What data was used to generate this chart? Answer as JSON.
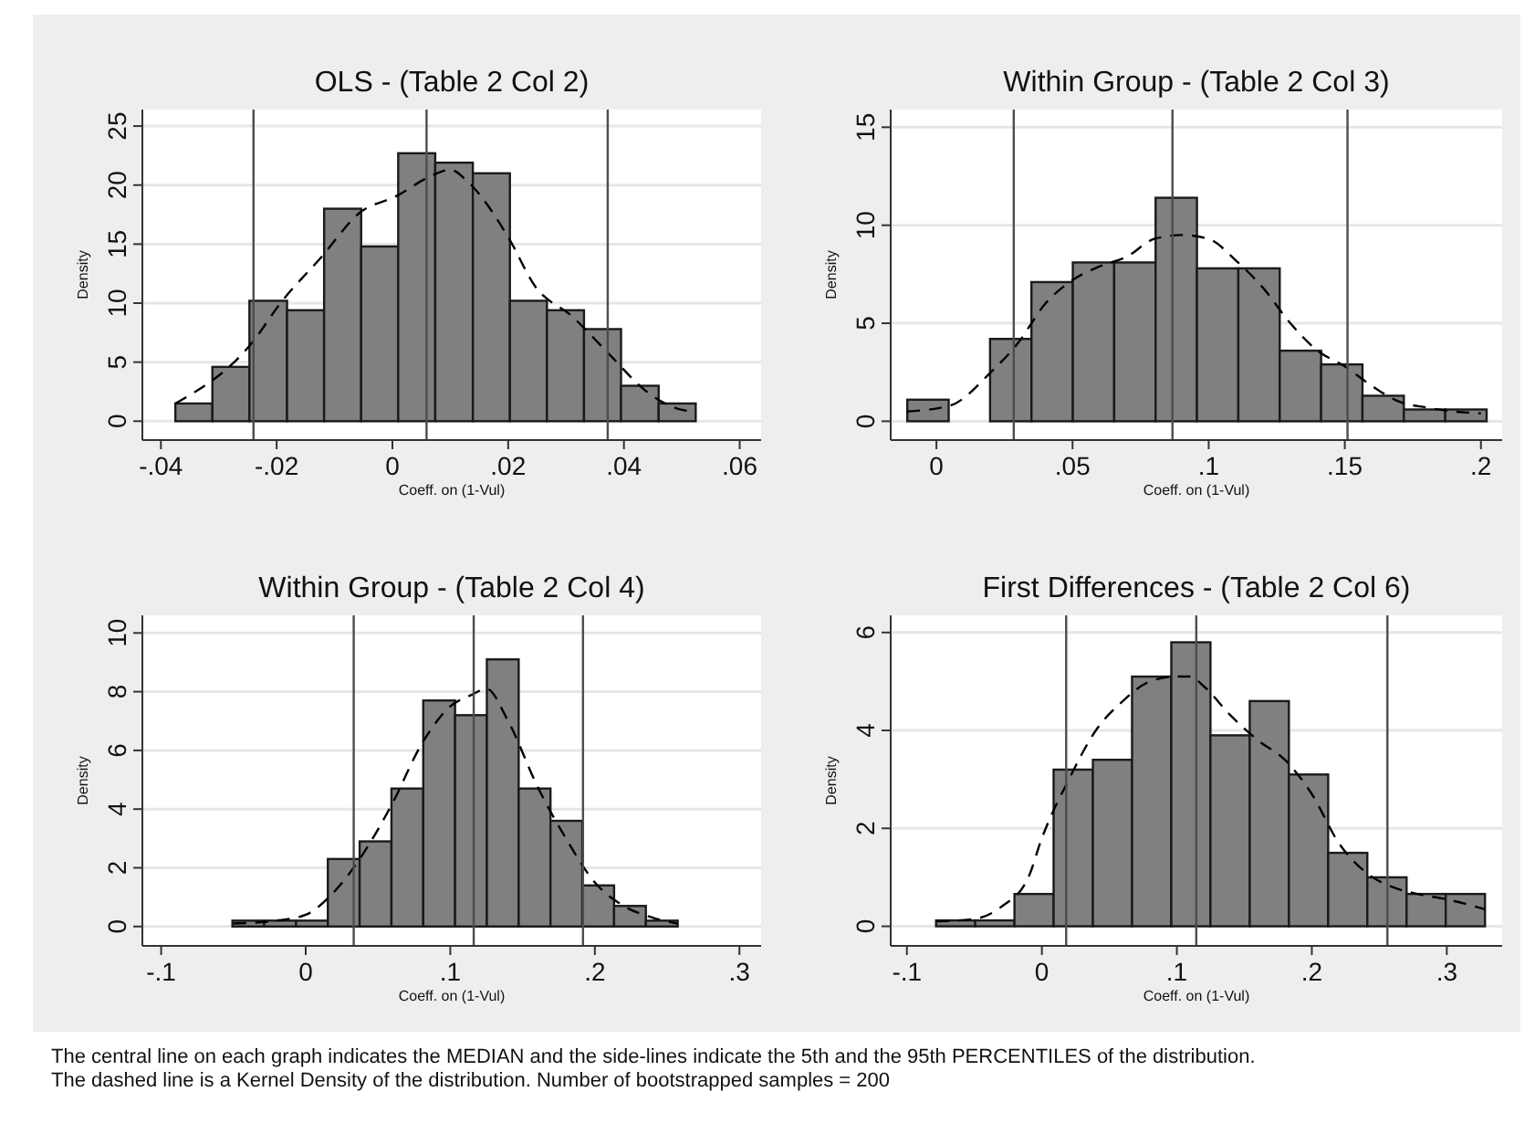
{
  "chart_data": [
    {
      "type": "histogram",
      "title": "OLS - (Table 2 Col 2)",
      "xlabel": "Coeff. on (1-Vul)",
      "ylabel": "Density",
      "color": "#808080",
      "grid": "y",
      "bins": [
        -0.0375,
        -0.0311,
        -0.0247,
        -0.0182,
        -0.0118,
        -0.0054,
        0.001,
        0.0074,
        0.0139,
        0.0203,
        0.0267,
        0.0331,
        0.0395,
        0.046,
        0.0524
      ],
      "values": [
        1.5,
        4.6,
        10.2,
        9.4,
        18.0,
        14.8,
        22.7,
        21.9,
        21.0,
        10.2,
        9.4,
        7.8,
        3.0,
        1.5
      ],
      "series": [
        {
          "type": "line",
          "line_style": "dashed",
          "color": "#000000",
          "x": [
            -0.0375,
            -0.024,
            -0.0195,
            -0.0121,
            -0.0058,
            0.0008,
            0.0068,
            0.01,
            0.0132,
            0.02,
            0.0247,
            0.031,
            0.0374,
            0.0437,
            0.049,
            0.052
          ],
          "values": [
            1.5,
            6.8,
            9.9,
            14,
            17.6,
            19.1,
            20.8,
            21.3,
            20.2,
            15.6,
            11.4,
            8.9,
            5.7,
            2.6,
            1.1,
            0.8
          ]
        }
      ],
      "ref_lines": [
        {
          "axis": "x",
          "value": -0.024,
          "color": "#4d4d4d"
        },
        {
          "axis": "x",
          "value": 0.0059,
          "color": "#4d4d4d"
        },
        {
          "axis": "x",
          "value": 0.0372,
          "color": "#4d4d4d"
        }
      ],
      "xlim": [
        -0.0432,
        0.0637
      ],
      "ylim": [
        -1.6,
        26.4
      ],
      "xticks": [
        {
          "value": -0.04,
          "label": "-.04"
        },
        {
          "value": -0.02,
          "label": "-.02"
        },
        {
          "value": 0,
          "label": "0"
        },
        {
          "value": 0.02,
          "label": ".02"
        },
        {
          "value": 0.04,
          "label": ".04"
        },
        {
          "value": 0.06,
          "label": ".06"
        }
      ],
      "yticks": [
        0,
        5,
        10,
        15,
        20,
        25
      ]
    },
    {
      "type": "histogram",
      "title": "Within Group - (Table 2 Col 3)",
      "xlabel": "Coeff. on (1-Vul)",
      "ylabel": "Density",
      "color": "#808080",
      "grid": "y",
      "bins": [
        -0.0107,
        0.0045,
        0.0197,
        0.0349,
        0.0501,
        0.0653,
        0.0805,
        0.0957,
        0.1109,
        0.1261,
        0.1413,
        0.1565,
        0.1717,
        0.1869,
        0.2021
      ],
      "values": [
        1.1,
        0,
        4.2,
        7.1,
        8.1,
        8.1,
        11.4,
        7.8,
        7.8,
        3.6,
        2.9,
        1.3,
        0.6,
        0.6
      ],
      "series": [
        {
          "type": "line",
          "line_style": "dashed",
          "color": "#000000",
          "x": [
            -0.0107,
            0.005,
            0.02,
            0.03,
            0.04,
            0.05,
            0.06,
            0.07,
            0.08,
            0.09,
            0.1,
            0.11,
            0.12,
            0.13,
            0.14,
            0.15,
            0.16,
            0.17,
            0.18,
            0.19,
            0.2
          ],
          "values": [
            0.5,
            0.8,
            2.5,
            4,
            6,
            7.2,
            7.9,
            8.4,
            9.3,
            9.5,
            9.3,
            8.2,
            6.8,
            5,
            3.6,
            2.8,
            1.8,
            1.0,
            0.7,
            0.5,
            0.4
          ]
        }
      ],
      "ref_lines": [
        {
          "axis": "x",
          "value": 0.0284,
          "color": "#4d4d4d"
        },
        {
          "axis": "x",
          "value": 0.0867,
          "color": "#4d4d4d"
        },
        {
          "axis": "x",
          "value": 0.151,
          "color": "#4d4d4d"
        }
      ],
      "xlim": [
        -0.0168,
        0.2078
      ],
      "ylim": [
        -0.96,
        15.9
      ],
      "xticks": [
        {
          "value": 0,
          "label": "0"
        },
        {
          "value": 0.05,
          "label": ".05"
        },
        {
          "value": 0.1,
          "label": ".1"
        },
        {
          "value": 0.15,
          "label": ".15"
        },
        {
          "value": 0.2,
          "label": ".2"
        }
      ],
      "yticks": [
        0,
        5,
        10,
        15
      ]
    },
    {
      "type": "histogram",
      "title": "Within Group - (Table 2 Col 4)",
      "xlabel": "Coeff. on (1-Vul)",
      "ylabel": "Density",
      "color": "#808080",
      "grid": "y",
      "bins": [
        -0.0507,
        -0.0287,
        -0.0067,
        0.0153,
        0.0373,
        0.0593,
        0.0813,
        0.1033,
        0.1253,
        0.1473,
        0.1693,
        0.1913,
        0.2133,
        0.2353,
        0.2573
      ],
      "values": [
        0.2,
        0.2,
        0.2,
        2.3,
        2.9,
        4.7,
        7.7,
        7.2,
        9.1,
        4.7,
        3.6,
        1.4,
        0.7,
        0.2
      ],
      "series": [
        {
          "type": "line",
          "line_style": "dashed",
          "color": "#000000",
          "x": [
            -0.05,
            -0.02,
            0,
            0.02,
            0.04,
            0.06,
            0.08,
            0.1,
            0.115,
            0.125,
            0.14,
            0.16,
            0.18,
            0.2,
            0.22,
            0.24,
            0.257
          ],
          "values": [
            0.1,
            0.2,
            0.4,
            1.2,
            2.5,
            4.2,
            6.2,
            7.5,
            7.9,
            8.1,
            7,
            4.8,
            3,
            1.5,
            0.7,
            0.3,
            0.1
          ]
        }
      ],
      "ref_lines": [
        {
          "axis": "x",
          "value": 0.0332,
          "color": "#4d4d4d"
        },
        {
          "axis": "x",
          "value": 0.1162,
          "color": "#4d4d4d"
        },
        {
          "axis": "x",
          "value": 0.1918,
          "color": "#4d4d4d"
        }
      ],
      "xlim": [
        -0.113,
        0.315
      ],
      "ylim": [
        -0.66,
        10.6
      ],
      "xticks": [
        {
          "value": -0.1,
          "label": "-.1"
        },
        {
          "value": 0,
          "label": "0"
        },
        {
          "value": 0.1,
          "label": ".1"
        },
        {
          "value": 0.2,
          "label": ".2"
        },
        {
          "value": 0.3,
          "label": ".3"
        }
      ],
      "yticks": [
        0,
        2,
        4,
        6,
        8,
        10
      ]
    },
    {
      "type": "histogram",
      "title": "First Differences - (Table 2 Col 6)",
      "xlabel": "Coeff. on (1-Vul)",
      "ylabel": "Density",
      "color": "#808080",
      "grid": "y",
      "bins": [
        -0.0784,
        -0.0494,
        -0.0203,
        0.0087,
        0.0378,
        0.0668,
        0.0959,
        0.1249,
        0.154,
        0.183,
        0.2121,
        0.2411,
        0.2702,
        0.2992,
        0.3283
      ],
      "values": [
        0.12,
        0.12,
        0.66,
        3.2,
        3.4,
        5.1,
        5.8,
        3.9,
        4.6,
        3.1,
        1.5,
        1.0,
        0.66,
        0.66
      ],
      "series": [
        {
          "type": "line",
          "line_style": "dashed",
          "color": "#000000",
          "x": [
            -0.078,
            -0.05,
            -0.03,
            -0.01,
            0,
            0.02,
            0.04,
            0.06,
            0.08,
            0.1,
            0.11,
            0.12,
            0.14,
            0.16,
            0.18,
            0.2,
            0.22,
            0.24,
            0.26,
            0.28,
            0.3,
            0.328
          ],
          "values": [
            0.1,
            0.15,
            0.4,
            1.0,
            1.8,
            3.0,
            4.0,
            4.6,
            5.0,
            5.1,
            5.1,
            4.9,
            4.3,
            3.8,
            3.4,
            2.7,
            1.7,
            1.1,
            0.8,
            0.65,
            0.55,
            0.35
          ]
        }
      ],
      "ref_lines": [
        {
          "axis": "x",
          "value": 0.018,
          "color": "#4d4d4d"
        },
        {
          "axis": "x",
          "value": 0.1144,
          "color": "#4d4d4d"
        },
        {
          "axis": "x",
          "value": 0.256,
          "color": "#4d4d4d"
        }
      ],
      "xlim": [
        -0.112,
        0.341
      ],
      "ylim": [
        -0.4,
        6.35
      ],
      "xticks": [
        {
          "value": -0.1,
          "label": "-.1"
        },
        {
          "value": 0,
          "label": "0"
        },
        {
          "value": 0.1,
          "label": ".1"
        },
        {
          "value": 0.2,
          "label": ".2"
        },
        {
          "value": 0.3,
          "label": ".3"
        }
      ],
      "yticks": [
        0,
        2,
        4,
        6
      ],
      "annotations": [
        "The central line on each graph indicates the MEDIAN and the side-lines indicate the 5th and the 95th PERCENTILES of the distribution.",
        "The dashed line is a Kernel Density of the distribution. Number of bootstrapped samples = 200"
      ]
    }
  ]
}
